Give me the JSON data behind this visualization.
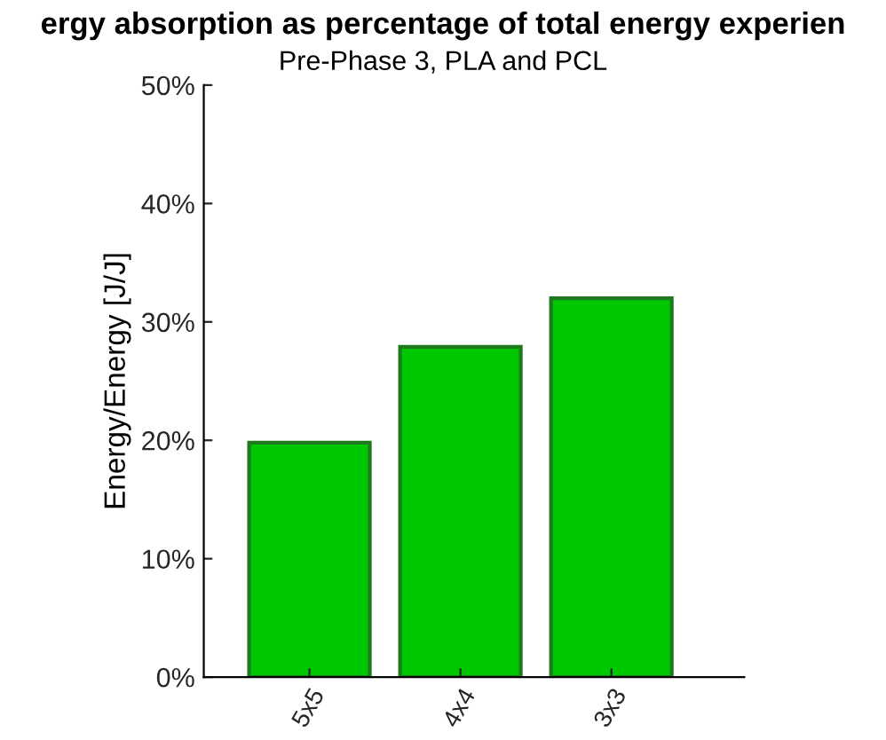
{
  "chart_data": {
    "type": "bar",
    "title": "ergy absorption as percentage of total energy experien",
    "subtitle": "Pre-Phase 3, PLA and PCL",
    "ylabel": "Energy/Energy [J/J]",
    "categories": [
      "5x5",
      "4x4",
      "3x3"
    ],
    "values": [
      19.8,
      27.9,
      32.0
    ],
    "color": "#00c800",
    "ylim": [
      0,
      50
    ],
    "yticks": [
      {
        "value": 0,
        "label": "0%"
      },
      {
        "value": 10,
        "label": "10%"
      },
      {
        "value": 20,
        "label": "20%"
      },
      {
        "value": 30,
        "label": "30%"
      },
      {
        "value": 40,
        "label": "40%"
      },
      {
        "value": 50,
        "label": "50%"
      }
    ],
    "grid": false,
    "legend": false
  }
}
